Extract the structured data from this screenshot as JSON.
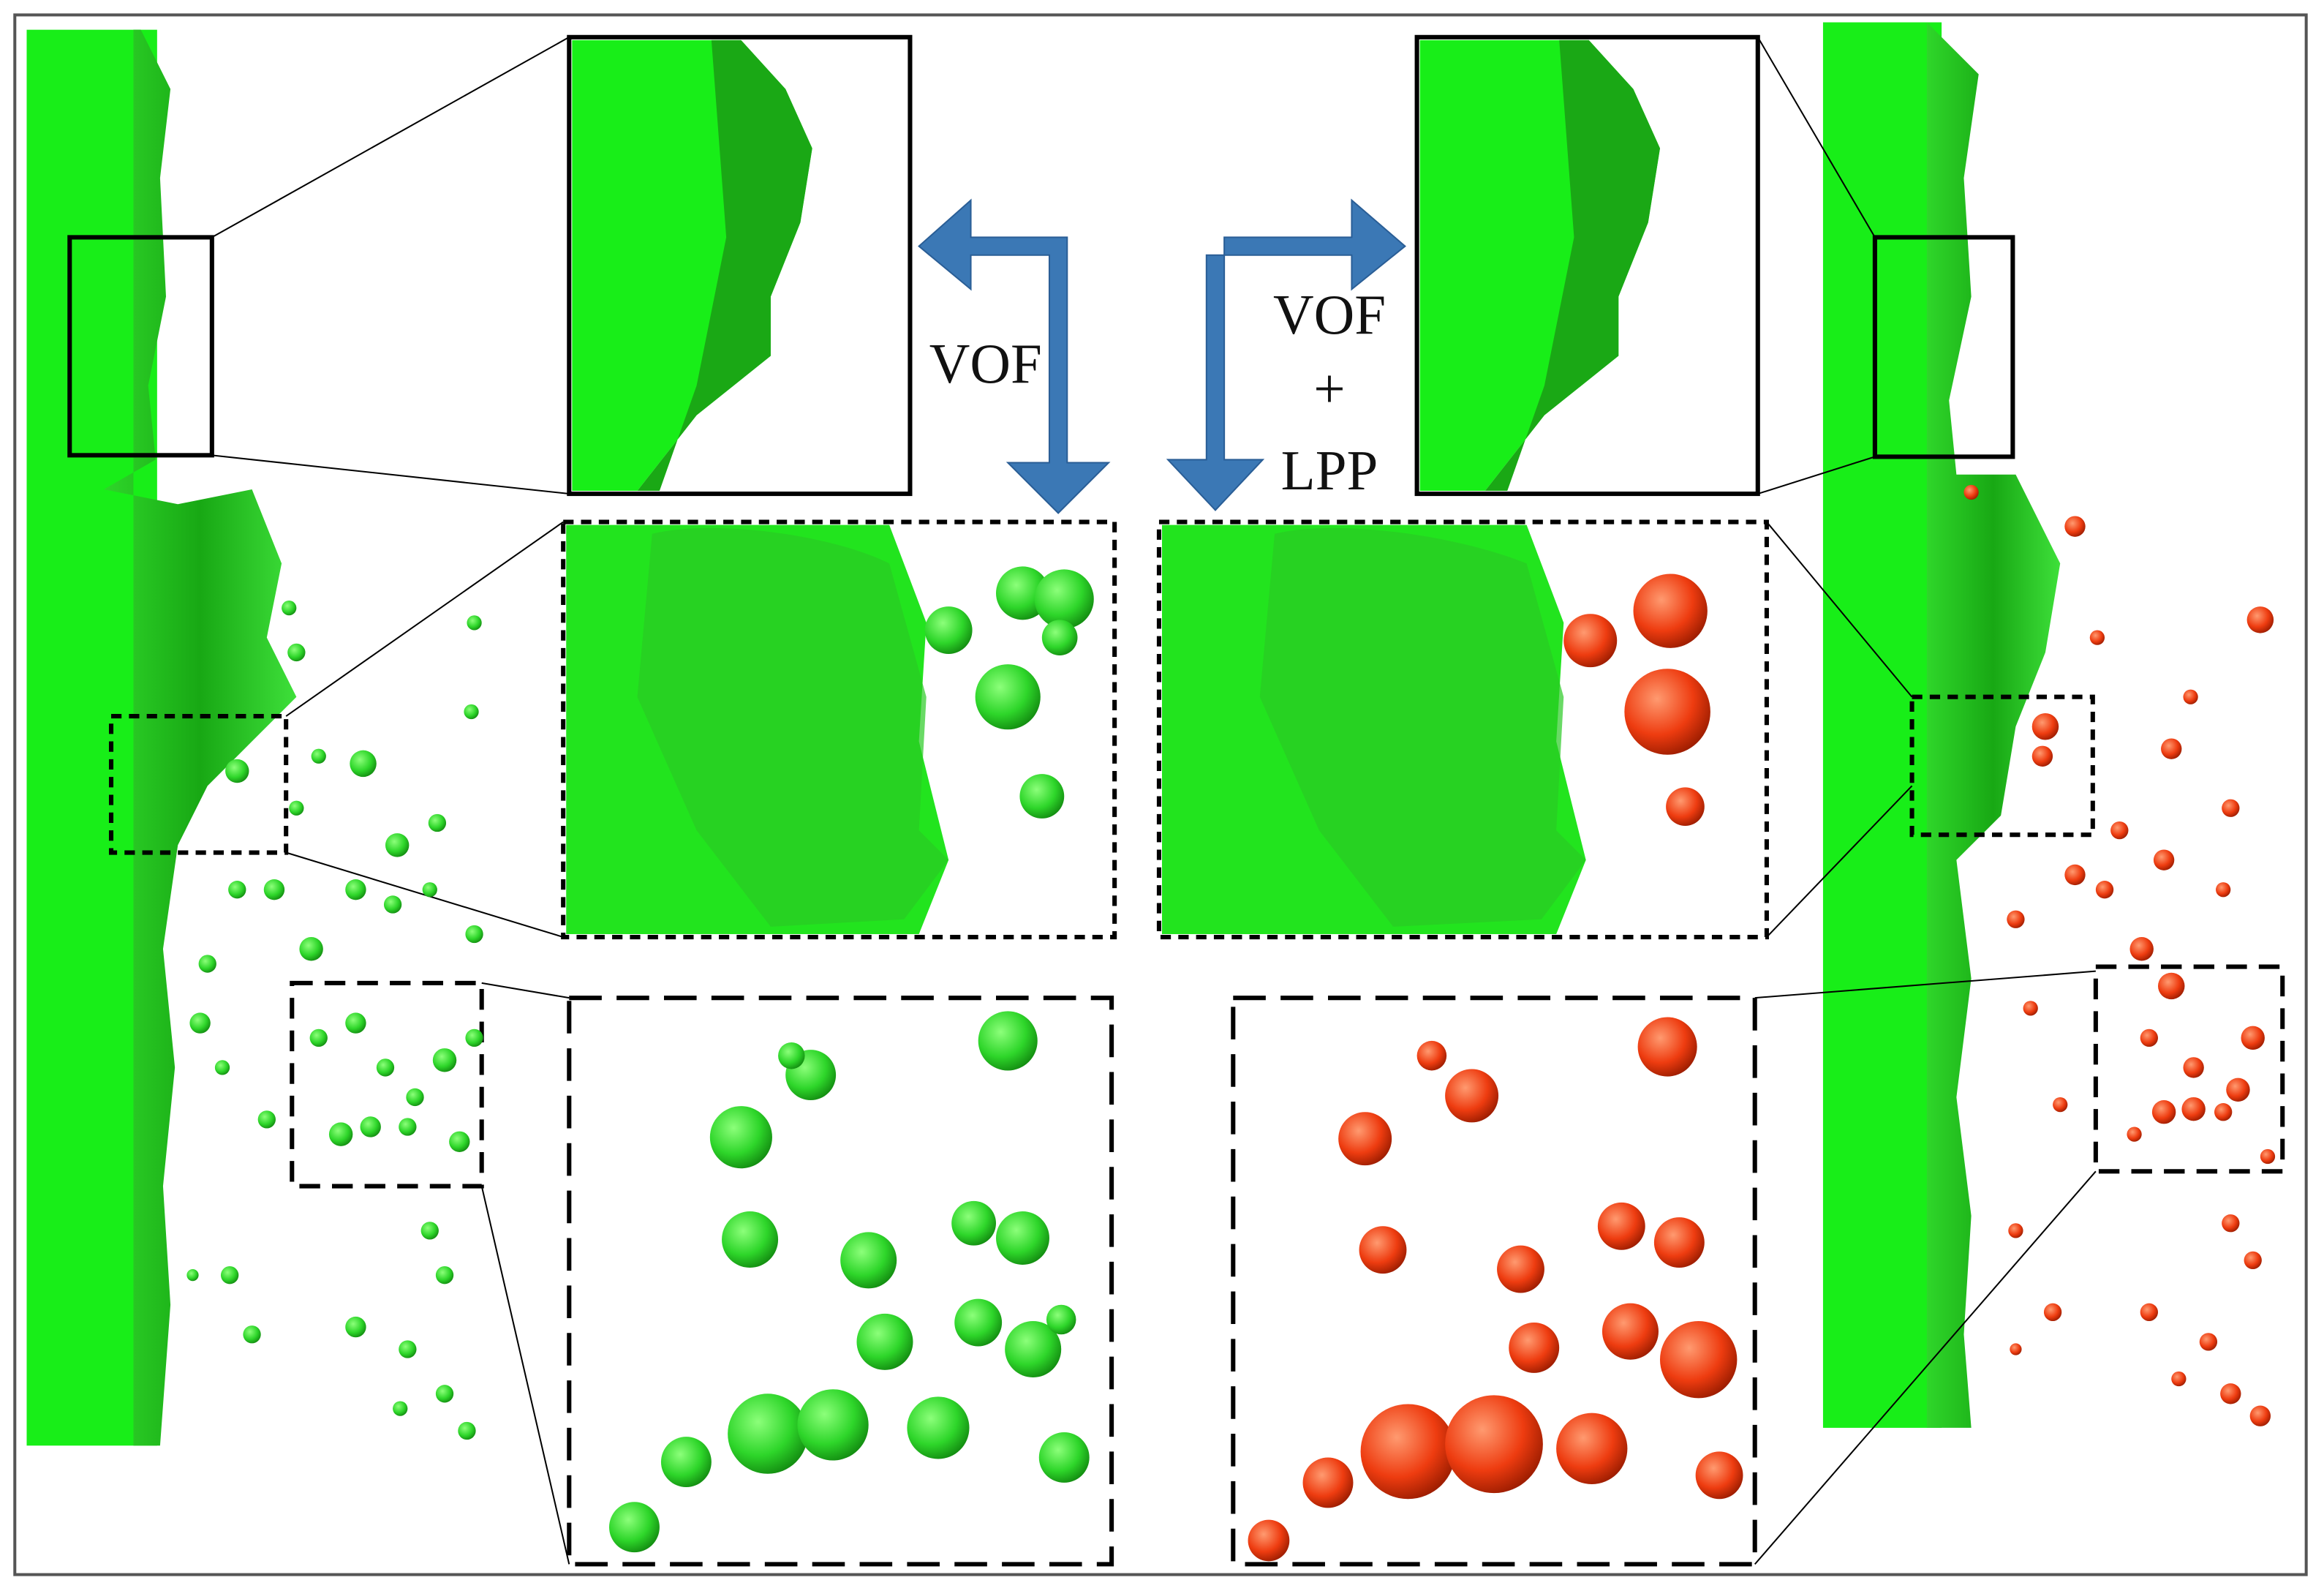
{
  "arrows": [
    {
      "label": "VOF"
    },
    {
      "label_lines": [
        "VOF",
        "+",
        "LPP"
      ]
    }
  ]
}
